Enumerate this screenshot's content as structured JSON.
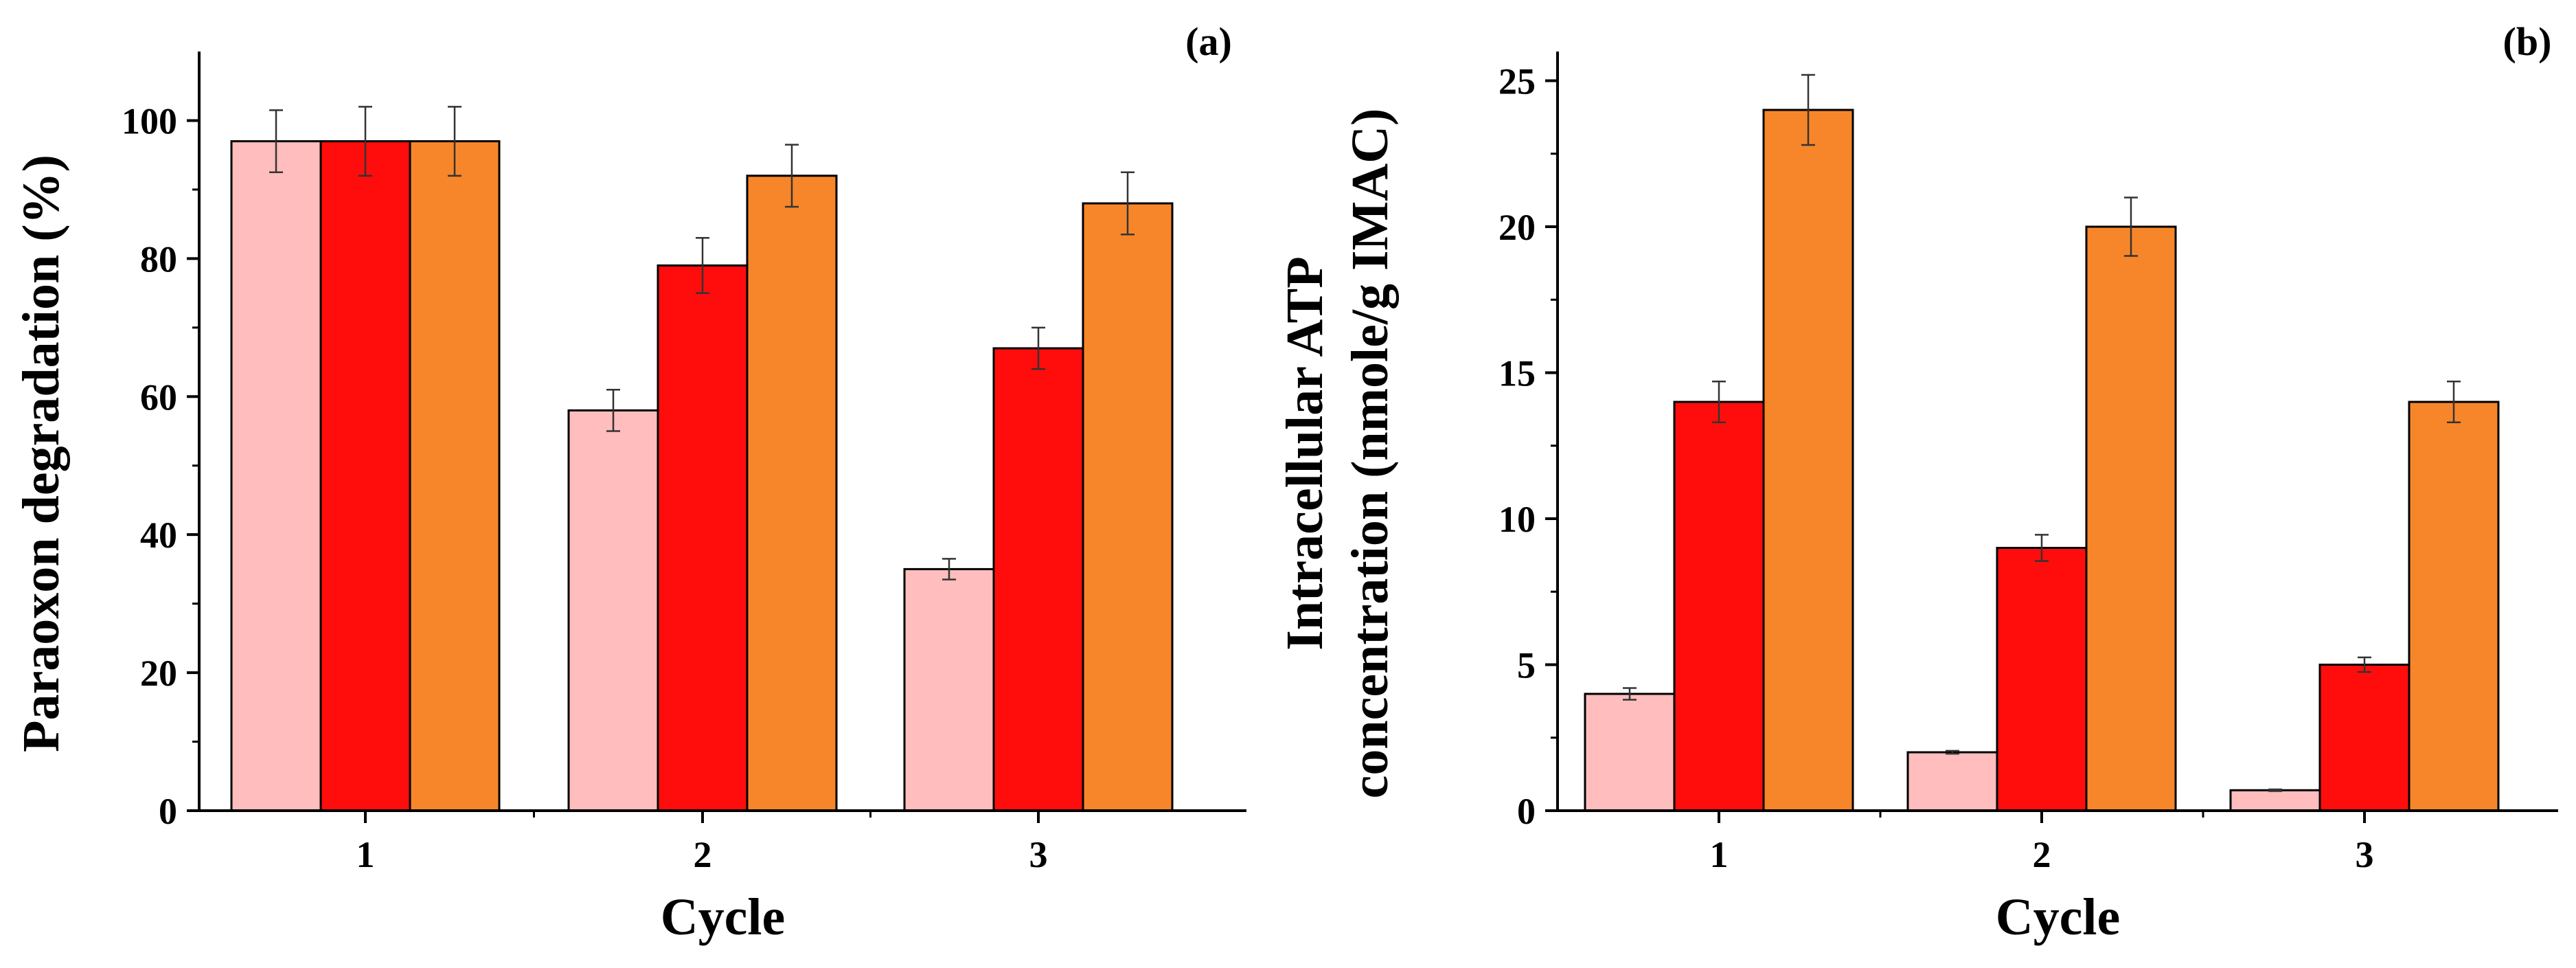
{
  "chart_data": [
    {
      "type": "bar",
      "panel_label": "(a)",
      "xlabel": "Cycle",
      "ylabel": "Paraoxon degradation (%)",
      "categories": [
        "1",
        "2",
        "3"
      ],
      "ylim": [
        0,
        110
      ],
      "yticks": [
        0,
        20,
        40,
        60,
        80,
        100
      ],
      "series": [
        {
          "name": "series-1",
          "color": "#FFBDBD",
          "values": [
            97,
            58,
            35
          ],
          "errors": [
            4.5,
            3,
            1.5
          ]
        },
        {
          "name": "series-2",
          "color": "#FF0D0D",
          "values": [
            97,
            79,
            67
          ],
          "errors": [
            5,
            4,
            3
          ]
        },
        {
          "name": "series-3",
          "color": "#F7862A",
          "values": [
            97,
            92,
            88
          ],
          "errors": [
            5,
            4.5,
            4.5
          ]
        }
      ]
    },
    {
      "type": "bar",
      "panel_label": "(b)",
      "xlabel": "Cycle",
      "ylabel": "Intracellular ATP concentration (nmole/g IMAC)",
      "ylabel_lines": [
        "Intracellular ATP",
        "concentration (nmole/g IMAC)"
      ],
      "categories": [
        "1",
        "2",
        "3"
      ],
      "ylim": [
        0,
        26
      ],
      "yticks": [
        0,
        5,
        10,
        15,
        20,
        25
      ],
      "series": [
        {
          "name": "series-1",
          "color": "#FFBDBD",
          "values": [
            4,
            2,
            0.7
          ],
          "errors": [
            0.2,
            0.05,
            0.03
          ]
        },
        {
          "name": "series-2",
          "color": "#FF0D0D",
          "values": [
            14,
            9,
            5
          ],
          "errors": [
            0.7,
            0.45,
            0.25
          ]
        },
        {
          "name": "series-3",
          "color": "#F7862A",
          "values": [
            24,
            20,
            14
          ],
          "errors": [
            1.2,
            1.0,
            0.7
          ]
        }
      ]
    }
  ]
}
